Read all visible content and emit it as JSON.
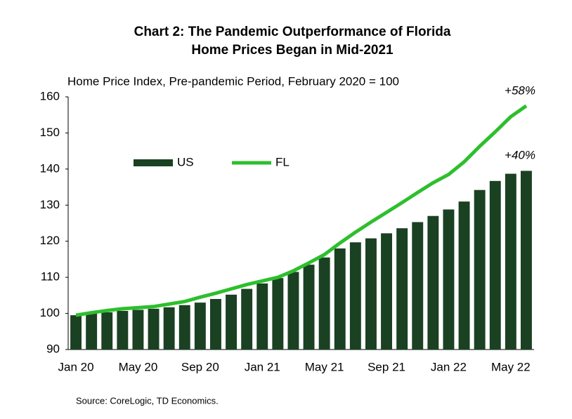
{
  "chart_data": {
    "type": "bar-line",
    "title": "Chart 2: The Pandemic Outperformance of Florida",
    "subtitle": "Home Prices Began in Mid-2021",
    "y_label": "Home Price Index, Pre-pandemic Period, February 2020 = 100",
    "source": "Source: CoreLogic, TD Economics.",
    "categories": [
      "Jan 20",
      null,
      null,
      null,
      "May 20",
      null,
      null,
      null,
      "Sep 20",
      null,
      null,
      null,
      "Jan 21",
      null,
      null,
      null,
      "May 21",
      null,
      null,
      null,
      "Sep 21",
      null,
      null,
      null,
      "Jan 22",
      null,
      null,
      null,
      "May 22",
      null
    ],
    "series": [
      {
        "name": "US",
        "type": "bar",
        "color": "#1a4122",
        "values": [
          99.5,
          100,
          100.3,
          100.7,
          101,
          101.3,
          101.7,
          102.3,
          103,
          104,
          105.2,
          106.8,
          108.3,
          109.8,
          111.5,
          113.5,
          115.5,
          118,
          119.7,
          120.8,
          122.2,
          123.6,
          125.3,
          127,
          128.8,
          131,
          134.2,
          136.7,
          138.7,
          139.5
        ]
      },
      {
        "name": "FL",
        "type": "line",
        "color": "#2dbf2d",
        "values": [
          99.5,
          100.2,
          100.8,
          101.3,
          101.6,
          101.9,
          102.6,
          103.3,
          104.5,
          105.6,
          106.8,
          108,
          109,
          110,
          111.8,
          114,
          116.3,
          119.5,
          122.5,
          125.3,
          128,
          130.7,
          133.5,
          136.2,
          138.5,
          142,
          146.3,
          150.3,
          154.5,
          157.5
        ]
      }
    ],
    "annotations": [
      "+58%",
      "+40%"
    ],
    "ylim": [
      90,
      160
    ],
    "yticks": [
      90,
      100,
      110,
      120,
      130,
      140,
      150,
      160
    ]
  }
}
